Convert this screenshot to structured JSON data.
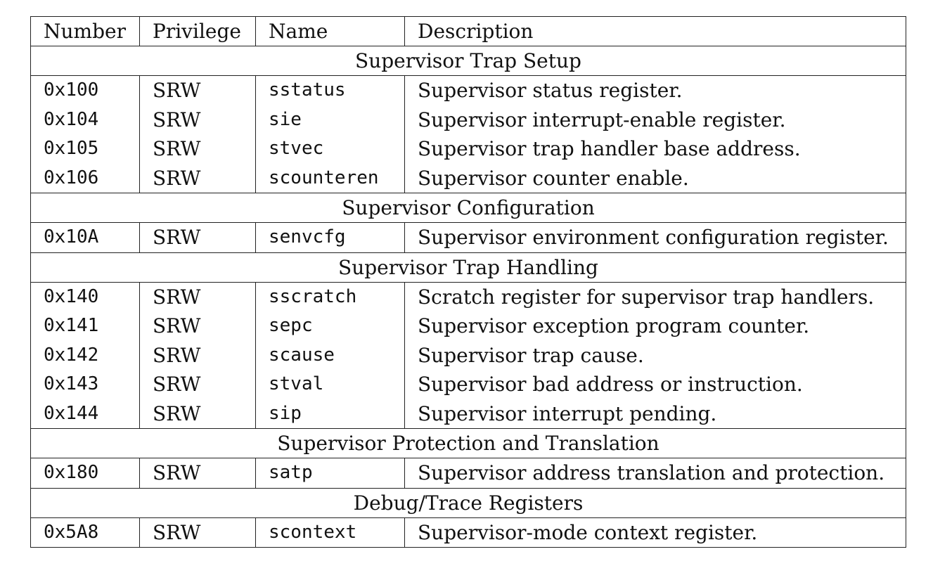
{
  "headers": {
    "number": "Number",
    "privilege": "Privilege",
    "name": "Name",
    "description": "Description"
  },
  "sections": [
    {
      "title": "Supervisor Trap Setup",
      "rows": [
        {
          "number": "0x100",
          "privilege": "SRW",
          "name": "sstatus",
          "description": "Supervisor status register."
        },
        {
          "number": "0x104",
          "privilege": "SRW",
          "name": "sie",
          "description": "Supervisor interrupt-enable register."
        },
        {
          "number": "0x105",
          "privilege": "SRW",
          "name": "stvec",
          "description": "Supervisor trap handler base address."
        },
        {
          "number": "0x106",
          "privilege": "SRW",
          "name": "scounteren",
          "description": "Supervisor counter enable."
        }
      ]
    },
    {
      "title": "Supervisor Configuration",
      "rows": [
        {
          "number": "0x10A",
          "privilege": "SRW",
          "name": "senvcfg",
          "description": "Supervisor environment configuration register."
        }
      ]
    },
    {
      "title": "Supervisor Trap Handling",
      "rows": [
        {
          "number": "0x140",
          "privilege": "SRW",
          "name": "sscratch",
          "description": "Scratch register for supervisor trap handlers."
        },
        {
          "number": "0x141",
          "privilege": "SRW",
          "name": "sepc",
          "description": "Supervisor exception program counter."
        },
        {
          "number": "0x142",
          "privilege": "SRW",
          "name": "scause",
          "description": "Supervisor trap cause."
        },
        {
          "number": "0x143",
          "privilege": "SRW",
          "name": "stval",
          "description": "Supervisor bad address or instruction."
        },
        {
          "number": "0x144",
          "privilege": "SRW",
          "name": "sip",
          "description": "Supervisor interrupt pending."
        }
      ]
    },
    {
      "title": "Supervisor Protection and Translation",
      "rows": [
        {
          "number": "0x180",
          "privilege": "SRW",
          "name": "satp",
          "description": "Supervisor address translation and protection."
        }
      ]
    },
    {
      "title": "Debug/Trace Registers",
      "rows": [
        {
          "number": "0x5A8",
          "privilege": "SRW",
          "name": "scontext",
          "description": "Supervisor-mode context register."
        }
      ]
    }
  ]
}
